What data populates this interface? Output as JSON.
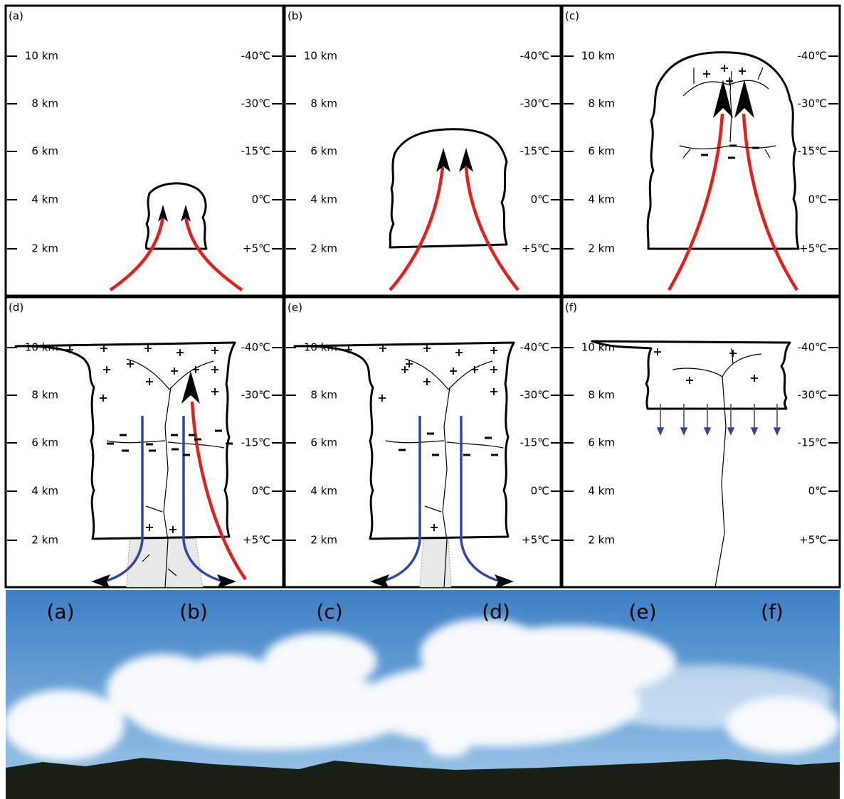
{
  "panels": [
    {
      "label": "(a)"
    },
    {
      "label": "(b)"
    },
    {
      "label": "(c)"
    },
    {
      "label": "(d)"
    },
    {
      "label": "(e)"
    },
    {
      "label": "(f)"
    }
  ],
  "altitudes": [
    "10 km",
    "8 km",
    "6 km",
    "4 km",
    "2 km"
  ],
  "temperatures": [
    "-40℃",
    "-30℃",
    "-15℃",
    "0℃",
    "+5℃"
  ],
  "photo": {
    "labels": [
      "(a)",
      "(b)",
      "(c)",
      "(d)",
      "(e)",
      "(f)"
    ]
  }
}
